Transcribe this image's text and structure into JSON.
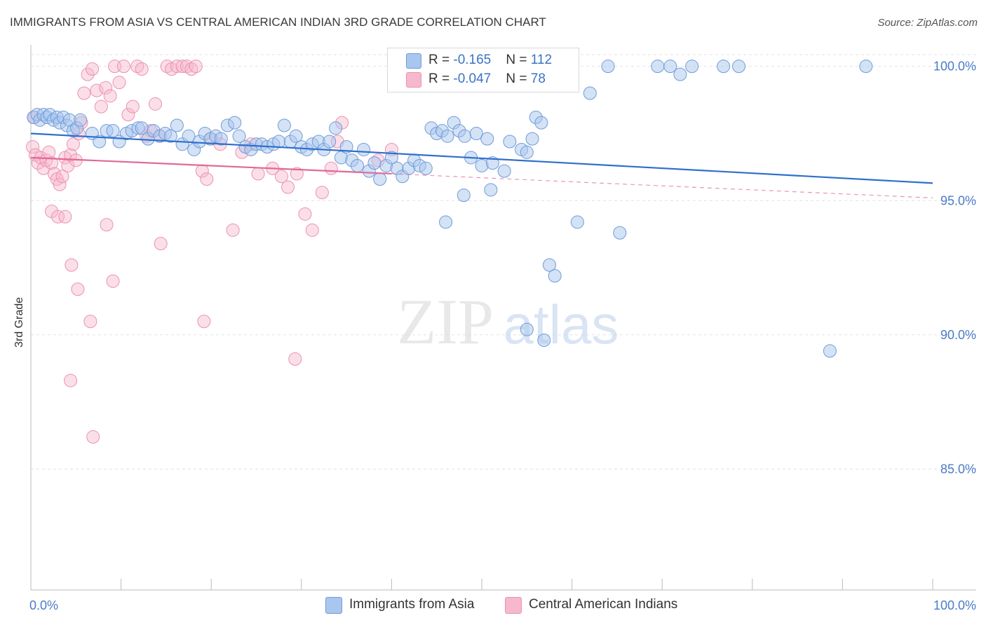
{
  "title": "IMMIGRANTS FROM ASIA VS CENTRAL AMERICAN INDIAN 3RD GRADE CORRELATION CHART",
  "source": "Source: ZipAtlas.com",
  "watermark": {
    "zip": "ZIP",
    "atlas": "atlas"
  },
  "colors": {
    "blue_fill": "#a9c6ee",
    "blue_stroke": "#6f9bd8",
    "blue_line": "#2f6fcc",
    "pink_fill": "#f6b8cc",
    "pink_stroke": "#ec91ae",
    "pink_line": "#e0699a",
    "tick_label": "#4a7cc7",
    "grid": "#e2e2e2"
  },
  "legend": {
    "rows": [
      {
        "r_label": "R = ",
        "r_value": "-0.165",
        "n_label": "N = ",
        "n_value": "112"
      },
      {
        "r_label": "R = ",
        "r_value": "-0.047",
        "n_label": "N = ",
        "n_value": "78"
      }
    ]
  },
  "chart_data": {
    "type": "scatter",
    "title": "IMMIGRANTS FROM ASIA VS CENTRAL AMERICAN INDIAN 3RD GRADE CORRELATION CHART",
    "xlabel": "",
    "ylabel": "3rd Grade",
    "xlim": [
      0,
      100
    ],
    "ylim": [
      80.5,
      100.8
    ],
    "x_tick_labels": [
      "0.0%",
      "100.0%"
    ],
    "y_ticks": [
      85,
      90,
      95,
      100
    ],
    "y_tick_labels": [
      "85.0%",
      "90.0%",
      "95.0%",
      "100.0%"
    ],
    "grid": true,
    "legend_position": "top-center",
    "series": [
      {
        "name": "Immigrants from Asia",
        "color": "#a9c6ee",
        "trend": {
          "x": [
            0,
            100
          ],
          "y": [
            97.5,
            95.65
          ],
          "style": "solid"
        },
        "points": [
          [
            0.3,
            98.1
          ],
          [
            0.7,
            98.2
          ],
          [
            1.0,
            98.0
          ],
          [
            1.4,
            98.2
          ],
          [
            1.8,
            98.1
          ],
          [
            2.1,
            98.2
          ],
          [
            2.5,
            98.0
          ],
          [
            2.9,
            98.1
          ],
          [
            3.2,
            97.9
          ],
          [
            3.6,
            98.1
          ],
          [
            4.0,
            97.8
          ],
          [
            4.3,
            98.0
          ],
          [
            4.7,
            97.6
          ],
          [
            5.1,
            97.7
          ],
          [
            5.5,
            98.0
          ],
          [
            6.8,
            97.5
          ],
          [
            7.6,
            97.2
          ],
          [
            8.4,
            97.6
          ],
          [
            9.1,
            97.6
          ],
          [
            9.8,
            97.2
          ],
          [
            10.6,
            97.5
          ],
          [
            11.2,
            97.6
          ],
          [
            11.9,
            97.7
          ],
          [
            12.3,
            97.7
          ],
          [
            13.0,
            97.3
          ],
          [
            13.6,
            97.6
          ],
          [
            14.3,
            97.4
          ],
          [
            14.9,
            97.5
          ],
          [
            15.5,
            97.4
          ],
          [
            16.2,
            97.8
          ],
          [
            16.8,
            97.1
          ],
          [
            17.5,
            97.4
          ],
          [
            18.1,
            96.9
          ],
          [
            18.7,
            97.2
          ],
          [
            19.3,
            97.5
          ],
          [
            19.9,
            97.3
          ],
          [
            20.5,
            97.4
          ],
          [
            21.1,
            97.3
          ],
          [
            21.8,
            97.8
          ],
          [
            22.6,
            97.9
          ],
          [
            23.1,
            97.4
          ],
          [
            23.8,
            97.0
          ],
          [
            24.4,
            96.9
          ],
          [
            25.0,
            97.1
          ],
          [
            25.6,
            97.1
          ],
          [
            26.2,
            97.0
          ],
          [
            26.9,
            97.1
          ],
          [
            27.5,
            97.2
          ],
          [
            28.1,
            97.8
          ],
          [
            28.8,
            97.2
          ],
          [
            29.4,
            97.4
          ],
          [
            30.0,
            97.0
          ],
          [
            30.6,
            96.9
          ],
          [
            31.2,
            97.1
          ],
          [
            31.9,
            97.2
          ],
          [
            32.5,
            96.9
          ],
          [
            33.1,
            97.2
          ],
          [
            33.8,
            97.7
          ],
          [
            34.4,
            96.6
          ],
          [
            35.0,
            97.0
          ],
          [
            35.6,
            96.5
          ],
          [
            36.2,
            96.3
          ],
          [
            36.9,
            96.9
          ],
          [
            37.5,
            96.1
          ],
          [
            38.1,
            96.4
          ],
          [
            38.7,
            95.8
          ],
          [
            39.4,
            96.3
          ],
          [
            40.0,
            96.6
          ],
          [
            40.6,
            96.2
          ],
          [
            41.2,
            95.9
          ],
          [
            41.9,
            96.2
          ],
          [
            42.5,
            96.5
          ],
          [
            43.1,
            96.3
          ],
          [
            43.8,
            96.2
          ],
          [
            44.4,
            97.7
          ],
          [
            45.0,
            97.5
          ],
          [
            45.6,
            97.6
          ],
          [
            46.2,
            97.4
          ],
          [
            46.9,
            97.9
          ],
          [
            47.5,
            97.6
          ],
          [
            48.1,
            97.4
          ],
          [
            48.8,
            96.6
          ],
          [
            49.4,
            97.5
          ],
          [
            50.0,
            96.3
          ],
          [
            50.6,
            97.3
          ],
          [
            51.2,
            96.4
          ],
          [
            52.5,
            96.1
          ],
          [
            53.1,
            97.2
          ],
          [
            54.4,
            96.9
          ],
          [
            55.0,
            96.8
          ],
          [
            55.6,
            97.3
          ],
          [
            46.0,
            94.2
          ],
          [
            48.0,
            95.2
          ],
          [
            51.0,
            95.4
          ],
          [
            56.0,
            98.1
          ],
          [
            56.6,
            97.9
          ],
          [
            57.5,
            92.6
          ],
          [
            58.1,
            92.2
          ],
          [
            55.0,
            90.2
          ],
          [
            56.9,
            89.8
          ],
          [
            60.6,
            94.2
          ],
          [
            62.0,
            99.0
          ],
          [
            64.0,
            100.0
          ],
          [
            65.3,
            93.8
          ],
          [
            69.5,
            100.0
          ],
          [
            70.9,
            100.0
          ],
          [
            72.0,
            99.7
          ],
          [
            73.3,
            100.0
          ],
          [
            76.8,
            100.0
          ],
          [
            78.5,
            100.0
          ],
          [
            88.6,
            89.4
          ],
          [
            92.6,
            100.0
          ]
        ]
      },
      {
        "name": "Central American Indians",
        "color": "#f6b8cc",
        "trend": {
          "x": [
            0,
            100
          ],
          "y": [
            96.6,
            95.1
          ],
          "style": "solid-then-dashed",
          "dash_from_x": 40
        },
        "points": [
          [
            0.2,
            97.0
          ],
          [
            0.5,
            96.7
          ],
          [
            0.8,
            96.4
          ],
          [
            1.1,
            96.6
          ],
          [
            1.4,
            96.2
          ],
          [
            1.7,
            96.5
          ],
          [
            2.0,
            96.8
          ],
          [
            2.3,
            96.4
          ],
          [
            2.6,
            96.0
          ],
          [
            2.9,
            95.8
          ],
          [
            3.2,
            95.6
          ],
          [
            3.5,
            95.9
          ],
          [
            3.8,
            96.6
          ],
          [
            4.1,
            96.3
          ],
          [
            4.4,
            96.7
          ],
          [
            4.7,
            97.1
          ],
          [
            5.0,
            96.5
          ],
          [
            5.3,
            97.5
          ],
          [
            5.6,
            97.9
          ],
          [
            5.9,
            99.0
          ],
          [
            6.3,
            99.7
          ],
          [
            6.8,
            99.9
          ],
          [
            7.3,
            99.1
          ],
          [
            7.8,
            98.5
          ],
          [
            8.3,
            99.2
          ],
          [
            8.8,
            98.9
          ],
          [
            9.3,
            100.0
          ],
          [
            9.8,
            99.4
          ],
          [
            10.3,
            100.0
          ],
          [
            10.8,
            98.2
          ],
          [
            11.3,
            98.5
          ],
          [
            11.8,
            100.0
          ],
          [
            12.3,
            99.9
          ],
          [
            12.8,
            97.4
          ],
          [
            13.3,
            97.6
          ],
          [
            13.8,
            98.6
          ],
          [
            14.3,
            97.4
          ],
          [
            15.1,
            100.0
          ],
          [
            15.6,
            99.9
          ],
          [
            16.2,
            100.0
          ],
          [
            16.8,
            100.0
          ],
          [
            17.3,
            100.0
          ],
          [
            17.8,
            99.9
          ],
          [
            18.3,
            100.0
          ],
          [
            19.0,
            96.1
          ],
          [
            19.5,
            95.8
          ],
          [
            20.0,
            97.3
          ],
          [
            21.0,
            97.1
          ],
          [
            22.4,
            93.9
          ],
          [
            23.4,
            96.8
          ],
          [
            24.4,
            97.1
          ],
          [
            25.2,
            96.0
          ],
          [
            26.8,
            96.2
          ],
          [
            27.8,
            95.9
          ],
          [
            28.5,
            95.5
          ],
          [
            29.5,
            96.0
          ],
          [
            30.4,
            94.5
          ],
          [
            31.2,
            93.9
          ],
          [
            32.3,
            95.3
          ],
          [
            33.3,
            96.2
          ],
          [
            34.0,
            97.2
          ],
          [
            34.5,
            97.9
          ],
          [
            38.5,
            96.5
          ],
          [
            40.0,
            96.9
          ],
          [
            2.3,
            94.6
          ],
          [
            3.0,
            94.4
          ],
          [
            3.8,
            94.4
          ],
          [
            4.5,
            92.6
          ],
          [
            5.2,
            91.7
          ],
          [
            8.4,
            94.1
          ],
          [
            9.1,
            92.0
          ],
          [
            14.4,
            93.4
          ],
          [
            6.6,
            90.5
          ],
          [
            19.2,
            90.5
          ],
          [
            29.3,
            89.1
          ],
          [
            4.4,
            88.3
          ],
          [
            6.9,
            86.2
          ],
          [
            0.4,
            98.1
          ]
        ]
      }
    ]
  },
  "bottom_legend": [
    "Immigrants from Asia",
    "Central American Indians"
  ]
}
